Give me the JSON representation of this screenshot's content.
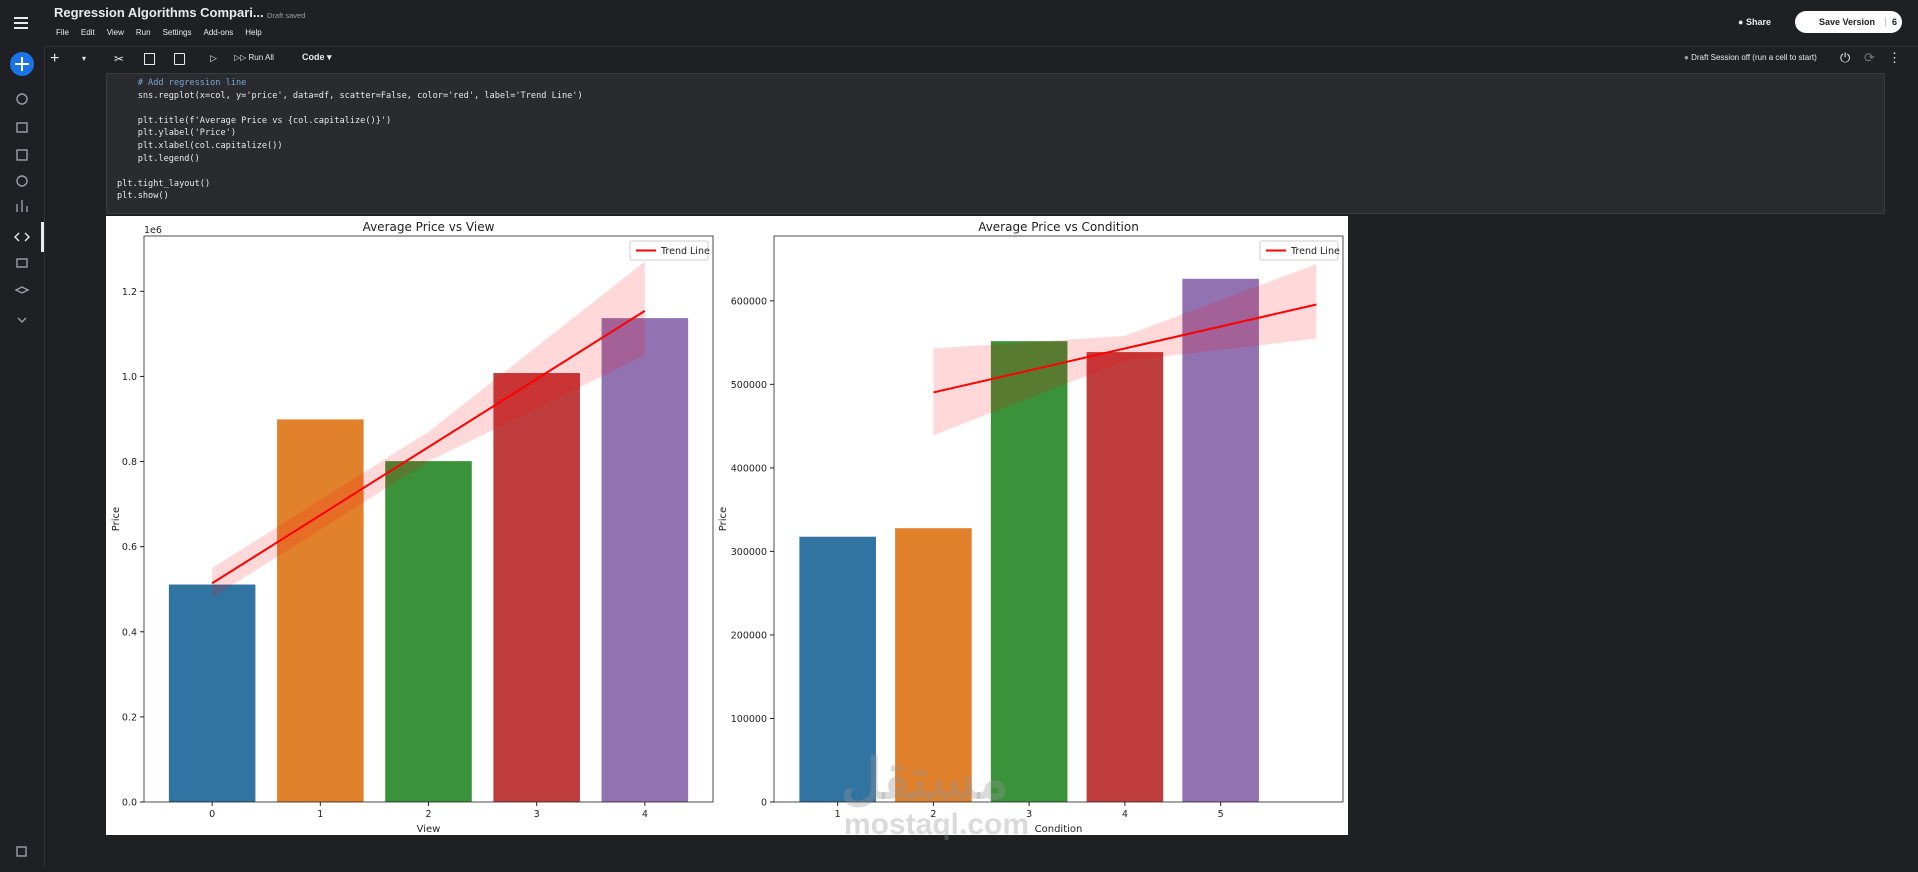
{
  "header": {
    "title": "Regression Algorithms Compari...",
    "status": "Draft saved",
    "menu": [
      "File",
      "Edit",
      "View",
      "Run",
      "Settings",
      "Add-ons",
      "Help"
    ],
    "share": "Share",
    "save_version": "Save Version",
    "version_count": "6"
  },
  "toolbar": {
    "run_all": "Run All",
    "cell_type": "Code",
    "session": "Draft Session off (run a cell to start)"
  },
  "code": {
    "lines": [
      "    # Add regression line",
      "    sns.regplot(x=col, y='price', data=df, scatter=False, color='red', label='Trend Line')",
      "    plt.title(f'Average Price vs {col.capitalize()}')",
      "    plt.ylabel('Price')",
      "    plt.xlabel(col.capitalize())",
      "    plt.legend()",
      "plt.tight_layout()",
      "plt.show()"
    ]
  },
  "watermark": [
    "مستقل",
    "mostaql.com"
  ],
  "chart_data": [
    {
      "type": "bar",
      "title": "Average Price vs View",
      "xlabel": "View",
      "ylabel": "Price",
      "offset_text": "1e6",
      "x": [
        0,
        1,
        2,
        3,
        4
      ],
      "values": [
        0.511,
        0.899,
        0.801,
        1.008,
        1.137
      ],
      "colors": [
        "#3274a1",
        "#e1812c",
        "#3a923a",
        "#c03d3e",
        "#9372b2"
      ],
      "xlim": [
        -0.63,
        4.63
      ],
      "xticks": [
        0,
        1,
        2,
        3,
        4
      ],
      "ylim": [
        0,
        1.33
      ],
      "yticks": [
        {
          "value": 0,
          "label": "0.0"
        },
        {
          "value": 0.2,
          "label": "0.2"
        },
        {
          "value": 0.4,
          "label": "0.4"
        },
        {
          "value": 0.6,
          "label": "0.6"
        },
        {
          "value": 0.8,
          "label": "0.8"
        },
        {
          "value": 1,
          "label": "1.0"
        },
        {
          "value": 1.2,
          "label": "1.2"
        }
      ],
      "trend": {
        "name": "Trend Line",
        "color": "red",
        "x": [
          0,
          4
        ],
        "values": [
          0.514,
          1.154
        ],
        "band_x": [
          0,
          2,
          4
        ],
        "band_lower": [
          0.48,
          0.8,
          1.05
        ],
        "band_upper": [
          0.55,
          0.87,
          1.27
        ]
      },
      "legend": "upper right"
    },
    {
      "type": "bar",
      "title": "Average Price vs Condition",
      "xlabel": "Condition",
      "ylabel": "Price",
      "x": [
        0,
        1,
        2,
        3,
        4
      ],
      "values": [
        317600,
        327800,
        551700,
        538600,
        626400
      ],
      "colors": [
        "#3274a1",
        "#e1812c",
        "#3a923a",
        "#c03d3e",
        "#9372b2"
      ],
      "xlim": [
        -0.665,
        5.278
      ],
      "xticks": [
        {
          "value": 0,
          "label": "1"
        },
        {
          "value": 1,
          "label": "2"
        },
        {
          "value": 2,
          "label": "3"
        },
        {
          "value": 3,
          "label": "4"
        },
        {
          "value": 4,
          "label": "5"
        }
      ],
      "ylim": [
        0,
        677600
      ],
      "yticks": [
        0,
        100000,
        200000,
        300000,
        400000,
        500000,
        600000
      ],
      "trend": {
        "name": "Trend Line",
        "color": "red",
        "x": [
          1,
          5
        ],
        "values": [
          490300,
          595600
        ],
        "band_x": [
          1,
          3,
          5
        ],
        "band_lower": [
          439000,
          528000,
          554700
        ],
        "band_upper": [
          543000,
          558000,
          644000
        ]
      },
      "legend": "upper right"
    }
  ]
}
